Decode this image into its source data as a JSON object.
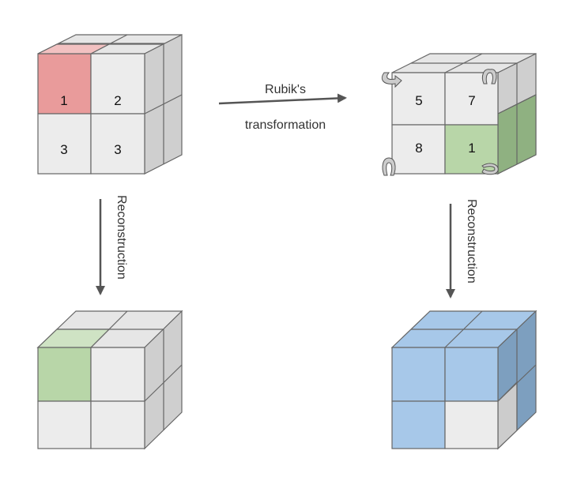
{
  "labels": {
    "arrow_top_line1": "Rubik's",
    "arrow_top_line2": "transformation",
    "arrow_left": "Reconstruction",
    "arrow_right": "Reconstruction"
  },
  "cubes": {
    "top_left": {
      "front_values": [
        "1",
        "2",
        "3",
        "3"
      ],
      "highlight": "#e99b9b"
    },
    "top_right": {
      "front_values": [
        "5",
        "7",
        "8",
        "1"
      ],
      "highlight": "#b8d6a8",
      "rotation_icons": [
        "rotate-arrow-icon",
        "rotate-arrow-icon",
        "rotate-arrow-icon",
        "rotate-arrow-icon"
      ]
    },
    "bottom_left": {
      "highlight": "#b8d6a8"
    },
    "bottom_right": {
      "highlight": "#a7c8e9"
    }
  },
  "colors": {
    "face_gray": "#ececec",
    "top_gray": "#e6e6e6",
    "side_gray": "#cfcfcf",
    "edge": "#666666",
    "arrow": "#555555"
  }
}
